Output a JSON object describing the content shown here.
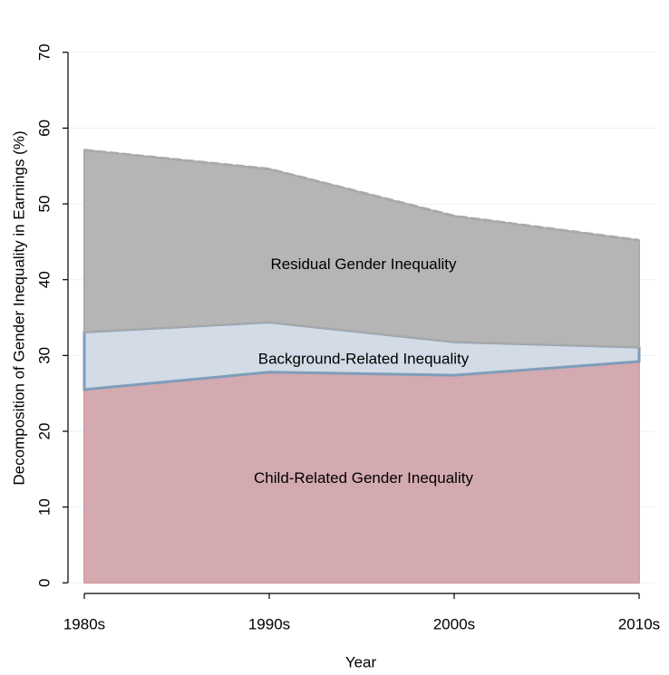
{
  "chart_data": {
    "type": "stacked-area",
    "x_label": "Year",
    "y_label": "Decomposition of Gender Inequality in Earnings (%)",
    "categories": [
      "1980s",
      "1990s",
      "2000s",
      "2010s"
    ],
    "series": [
      {
        "name": "Child-Related Gender Inequality",
        "color": "#d3aab0",
        "line_color": "#d49ea5",
        "values": [
          25.5,
          27.8,
          27.4,
          29.2
        ]
      },
      {
        "name": "Background-Related Inequality",
        "color": "#d2dbe6",
        "line_color": "#7f9db9",
        "values": [
          7.6,
          6.6,
          4.4,
          1.9
        ]
      },
      {
        "name": "Residual Gender Inequality",
        "color": "#b5b5b5",
        "line_color": "#a9a9a9",
        "values": [
          24.0,
          20.2,
          16.6,
          14.1
        ]
      }
    ],
    "ylim": [
      -1.4,
      72
    ],
    "yticks": [
      0,
      10,
      20,
      30,
      40,
      50,
      60,
      70
    ]
  }
}
